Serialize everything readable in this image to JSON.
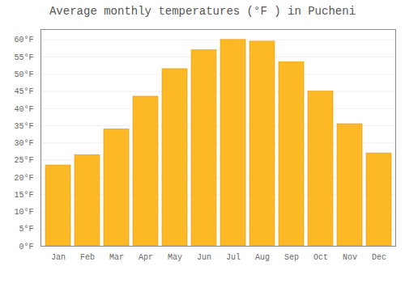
{
  "chart_data": {
    "type": "bar",
    "title": "Average monthly temperatures (°F ) in Pucheni",
    "categories": [
      "Jan",
      "Feb",
      "Mar",
      "Apr",
      "May",
      "Jun",
      "Jul",
      "Aug",
      "Sep",
      "Oct",
      "Nov",
      "Dec"
    ],
    "values": [
      23.5,
      26.5,
      34,
      43.5,
      51.5,
      57,
      60,
      59.5,
      53.5,
      45,
      35.5,
      27
    ],
    "color": "#FDB825",
    "ylim": [
      0,
      63
    ],
    "yticks": [
      {
        "value": 0,
        "label": "0°F"
      },
      {
        "value": 5,
        "label": "5°F"
      },
      {
        "value": 10,
        "label": "10°F"
      },
      {
        "value": 15,
        "label": "15°F"
      },
      {
        "value": 20,
        "label": "20°F"
      },
      {
        "value": 25,
        "label": "25°F"
      },
      {
        "value": 30,
        "label": "30°F"
      },
      {
        "value": 35,
        "label": "35°F"
      },
      {
        "value": 40,
        "label": "40°F"
      },
      {
        "value": 45,
        "label": "45°F"
      },
      {
        "value": 50,
        "label": "50°F"
      },
      {
        "value": 55,
        "label": "55°F"
      },
      {
        "value": 60,
        "label": "60°F"
      }
    ],
    "grid": true
  }
}
